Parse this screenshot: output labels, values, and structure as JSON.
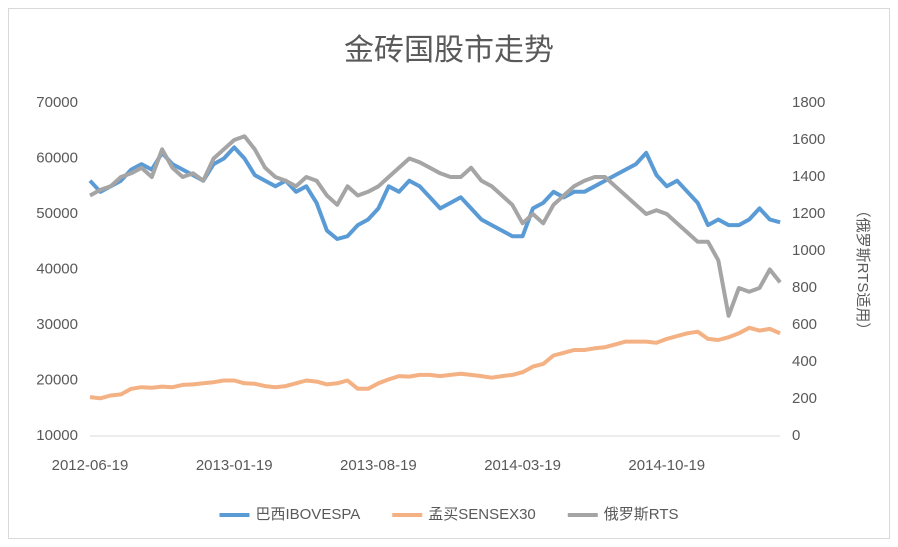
{
  "chart_data": {
    "type": "line",
    "title": "金砖国股市走势",
    "y2label": "（俄罗斯RTS适用）",
    "categories": [
      "2012-06-19",
      null,
      null,
      null,
      null,
      null,
      null,
      null,
      null,
      null,
      null,
      null,
      null,
      null,
      "2013-01-19",
      null,
      null,
      null,
      null,
      null,
      null,
      null,
      null,
      null,
      null,
      null,
      null,
      null,
      "2013-08-19",
      null,
      null,
      null,
      null,
      null,
      null,
      null,
      null,
      null,
      null,
      null,
      null,
      null,
      "2014-03-19",
      null,
      null,
      null,
      null,
      null,
      null,
      null,
      null,
      null,
      null,
      null,
      null,
      null,
      "2014-10-19",
      null,
      null,
      null,
      null,
      null,
      null,
      null,
      null,
      null,
      null,
      null
    ],
    "ylim": [
      10000,
      70000
    ],
    "yticks": [
      10000,
      20000,
      30000,
      40000,
      50000,
      60000,
      70000
    ],
    "y2lim": [
      0,
      1800
    ],
    "y2ticks": [
      0,
      200,
      400,
      600,
      800,
      1000,
      1200,
      1400,
      1600,
      1800
    ],
    "grid": false,
    "legend": "bottom",
    "series": [
      {
        "name": "巴西IBOVESPA",
        "color": "#5b9bd5",
        "values": [
          56000,
          54000,
          55000,
          56000,
          58000,
          59000,
          58000,
          61000,
          59000,
          58000,
          57000,
          56000,
          59000,
          60000,
          62000,
          60000,
          57000,
          56000,
          55000,
          56000,
          54000,
          55000,
          52000,
          47000,
          45500,
          46000,
          48000,
          49000,
          51000,
          55000,
          54000,
          56000,
          55000,
          53000,
          51000,
          52000,
          53000,
          51000,
          49000,
          48000,
          47000,
          46000,
          46000,
          51000,
          52000,
          54000,
          53000,
          54000,
          54000,
          55000,
          56000,
          57000,
          58000,
          59000,
          61000,
          57000,
          55000,
          56000,
          54000,
          52000,
          48000,
          49000,
          48000,
          48000,
          49000,
          51000,
          49000,
          48500
        ]
      },
      {
        "name": "孟买SENSEX30",
        "color": "#f4b183",
        "values": [
          17000,
          16800,
          17300,
          17500,
          18500,
          18800,
          18700,
          18900,
          18800,
          19200,
          19300,
          19500,
          19700,
          20000,
          20000,
          19500,
          19400,
          19000,
          18800,
          19000,
          19500,
          20000,
          19800,
          19300,
          19500,
          20000,
          18500,
          18500,
          19500,
          20200,
          20800,
          20700,
          21000,
          21000,
          20800,
          21000,
          21200,
          21000,
          20800,
          20500,
          20800,
          21000,
          21500,
          22500,
          23000,
          24500,
          25000,
          25500,
          25500,
          25800,
          26000,
          26500,
          27000,
          27000,
          27000,
          26800,
          27500,
          28000,
          28500,
          28800,
          27500,
          27300,
          27800,
          28500,
          29500,
          29000,
          29300,
          28500
        ]
      },
      {
        "name": "俄罗斯RTS",
        "color": "#a5a5a5",
        "axis": "y2",
        "values": [
          1300,
          1330,
          1350,
          1400,
          1420,
          1450,
          1400,
          1550,
          1450,
          1400,
          1420,
          1380,
          1500,
          1550,
          1600,
          1620,
          1550,
          1450,
          1400,
          1380,
          1350,
          1400,
          1380,
          1300,
          1250,
          1350,
          1300,
          1320,
          1350,
          1400,
          1450,
          1500,
          1480,
          1450,
          1420,
          1400,
          1400,
          1450,
          1380,
          1350,
          1300,
          1250,
          1150,
          1200,
          1150,
          1250,
          1300,
          1350,
          1380,
          1400,
          1400,
          1350,
          1300,
          1250,
          1200,
          1220,
          1200,
          1150,
          1100,
          1050,
          1050,
          950,
          650,
          800,
          780,
          800,
          900,
          830
        ]
      }
    ]
  }
}
